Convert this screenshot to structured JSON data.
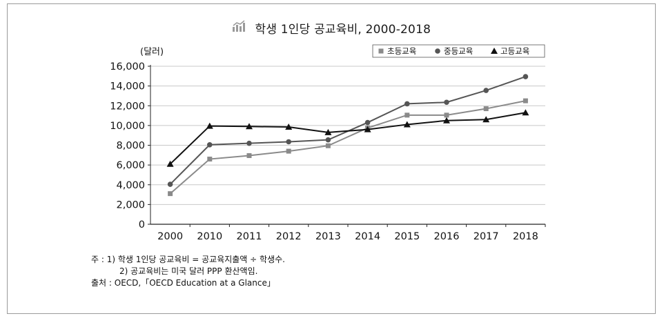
{
  "title": "학생 1인당 공교육비, 2000-2018",
  "icon": "bar-chart-icon",
  "chart_data": {
    "type": "line",
    "title": "학생 1인당 공교육비, 2000-2018",
    "unit_label": "(달러)",
    "categories": [
      "2000",
      "2010",
      "2011",
      "2012",
      "2013",
      "2014",
      "2015",
      "2016",
      "2017",
      "2018"
    ],
    "y_ticks": [
      "0",
      "2,000",
      "4,000",
      "6,000",
      "8,000",
      "10,000",
      "12,000",
      "14,000",
      "16,000"
    ],
    "ylim": [
      0,
      16000
    ],
    "grid": true,
    "legend_position": "top-right",
    "series": [
      {
        "name": "초등교육",
        "marker": "square",
        "color": "#8a8a8a",
        "values": [
          3100,
          6600,
          6950,
          7400,
          7950,
          9750,
          11050,
          11050,
          11700,
          12500
        ]
      },
      {
        "name": "중등교육",
        "marker": "circle",
        "color": "#555555",
        "values": [
          4050,
          8050,
          8200,
          8350,
          8550,
          10300,
          12200,
          12350,
          13550,
          14950
        ]
      },
      {
        "name": "고등교육",
        "marker": "triangle",
        "color": "#111111",
        "values": [
          6100,
          9950,
          9900,
          9850,
          9300,
          9600,
          10100,
          10500,
          10600,
          11300
        ]
      }
    ]
  },
  "notes": {
    "line1": "주   : 1) 학생 1인당 공교육비 = 공교육지출액 ÷ 학생수.",
    "line2": "2) 공교육비는 미국 달러 PPP 환산액임.",
    "line3": "출처 : OECD,「OECD Education at a Glance」"
  }
}
